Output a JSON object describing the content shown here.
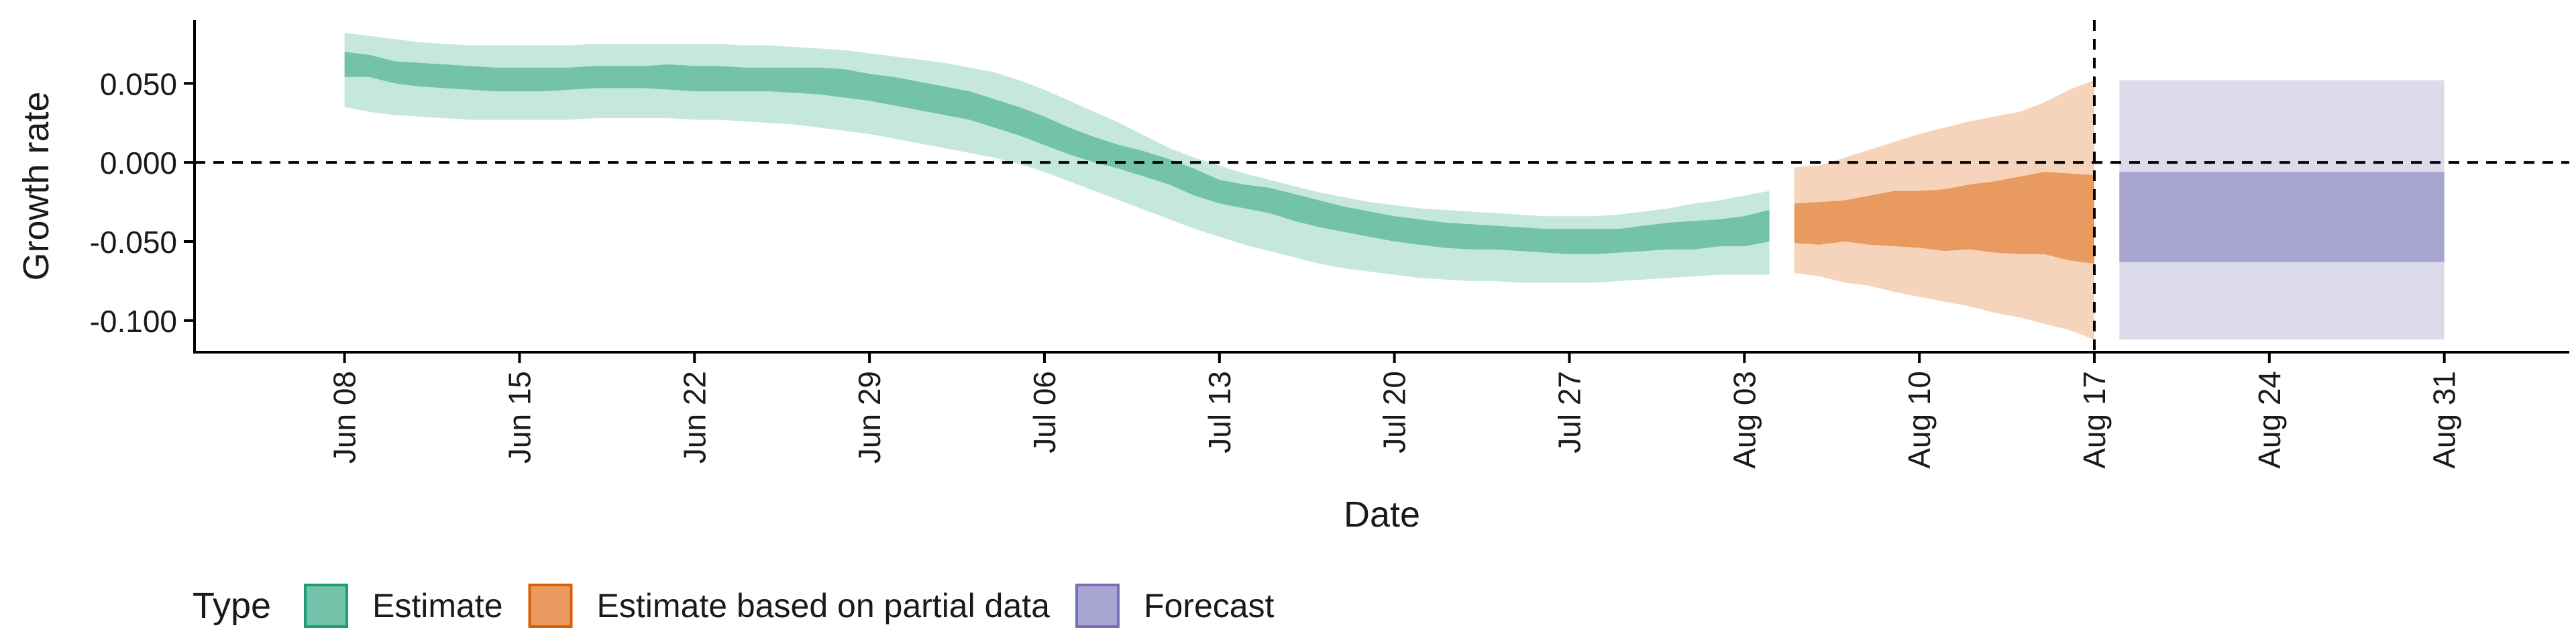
{
  "chart_data": {
    "type": "area",
    "title": "",
    "xlabel": "Date",
    "ylabel": "Growth rate",
    "ylim": [
      -0.12,
      0.09
    ],
    "xlim": [
      "2020-06-02",
      "2020-09-05"
    ],
    "grid": false,
    "y_ticks": [
      {
        "value": 0.05,
        "label": "0.050"
      },
      {
        "value": 0.0,
        "label": "0.000"
      },
      {
        "value": -0.05,
        "label": "-0.050"
      },
      {
        "value": -0.1,
        "label": "-0.100"
      }
    ],
    "x_ticks": [
      {
        "value": "2020-06-08",
        "label": "Jun 08"
      },
      {
        "value": "2020-06-15",
        "label": "Jun 15"
      },
      {
        "value": "2020-06-22",
        "label": "Jun 22"
      },
      {
        "value": "2020-06-29",
        "label": "Jun 29"
      },
      {
        "value": "2020-07-06",
        "label": "Jul 06"
      },
      {
        "value": "2020-07-13",
        "label": "Jul 13"
      },
      {
        "value": "2020-07-20",
        "label": "Jul 20"
      },
      {
        "value": "2020-07-27",
        "label": "Jul 27"
      },
      {
        "value": "2020-08-03",
        "label": "Aug 03"
      },
      {
        "value": "2020-08-10",
        "label": "Aug 10"
      },
      {
        "value": "2020-08-17",
        "label": "Aug 17"
      },
      {
        "value": "2020-08-24",
        "label": "Aug 24"
      },
      {
        "value": "2020-08-31",
        "label": "Aug 31"
      }
    ],
    "reference_lines": [
      {
        "axis": "y",
        "value": 0.0,
        "style": "dashed"
      },
      {
        "axis": "x",
        "value": "2020-08-17",
        "style": "dashed"
      }
    ],
    "legend": {
      "title": "Type",
      "position": "bottom-left",
      "entries": [
        {
          "label": "Estimate",
          "color": "#1b9e77"
        },
        {
          "label": "Estimate based on partial data",
          "color": "#d95f02"
        },
        {
          "label": "Forecast",
          "color": "#7570b3"
        }
      ]
    },
    "series": [
      {
        "name": "Estimate",
        "color": "#1b9e77",
        "x": [
          "2020-06-08",
          "2020-06-09",
          "2020-06-10",
          "2020-06-11",
          "2020-06-12",
          "2020-06-13",
          "2020-06-14",
          "2020-06-15",
          "2020-06-16",
          "2020-06-17",
          "2020-06-18",
          "2020-06-19",
          "2020-06-20",
          "2020-06-21",
          "2020-06-22",
          "2020-06-23",
          "2020-06-24",
          "2020-06-25",
          "2020-06-26",
          "2020-06-27",
          "2020-06-28",
          "2020-06-29",
          "2020-06-30",
          "2020-07-01",
          "2020-07-02",
          "2020-07-03",
          "2020-07-04",
          "2020-07-05",
          "2020-07-06",
          "2020-07-07",
          "2020-07-08",
          "2020-07-09",
          "2020-07-10",
          "2020-07-11",
          "2020-07-12",
          "2020-07-13",
          "2020-07-14",
          "2020-07-15",
          "2020-07-16",
          "2020-07-17",
          "2020-07-18",
          "2020-07-19",
          "2020-07-20",
          "2020-07-21",
          "2020-07-22",
          "2020-07-23",
          "2020-07-24",
          "2020-07-25",
          "2020-07-26",
          "2020-07-27",
          "2020-07-28",
          "2020-07-29",
          "2020-07-30",
          "2020-07-31",
          "2020-08-01",
          "2020-08-02",
          "2020-08-03",
          "2020-08-04"
        ],
        "upper_90": [
          0.082,
          0.08,
          0.078,
          0.076,
          0.075,
          0.074,
          0.074,
          0.074,
          0.074,
          0.074,
          0.075,
          0.075,
          0.075,
          0.075,
          0.075,
          0.075,
          0.074,
          0.074,
          0.073,
          0.072,
          0.071,
          0.069,
          0.067,
          0.065,
          0.063,
          0.06,
          0.057,
          0.052,
          0.046,
          0.039,
          0.032,
          0.025,
          0.017,
          0.009,
          0.003,
          -0.002,
          -0.007,
          -0.011,
          -0.015,
          -0.019,
          -0.022,
          -0.025,
          -0.027,
          -0.029,
          -0.03,
          -0.031,
          -0.032,
          -0.033,
          -0.034,
          -0.034,
          -0.034,
          -0.033,
          -0.031,
          -0.029,
          -0.026,
          -0.024,
          -0.021,
          -0.018
        ],
        "upper_50": [
          0.07,
          0.068,
          0.064,
          0.063,
          0.062,
          0.061,
          0.06,
          0.06,
          0.06,
          0.06,
          0.061,
          0.061,
          0.061,
          0.062,
          0.061,
          0.061,
          0.06,
          0.06,
          0.06,
          0.06,
          0.059,
          0.056,
          0.054,
          0.051,
          0.048,
          0.045,
          0.04,
          0.035,
          0.029,
          0.022,
          0.016,
          0.011,
          0.007,
          0.002,
          -0.004,
          -0.011,
          -0.014,
          -0.016,
          -0.02,
          -0.024,
          -0.028,
          -0.031,
          -0.034,
          -0.036,
          -0.038,
          -0.039,
          -0.04,
          -0.041,
          -0.042,
          -0.042,
          -0.042,
          -0.042,
          -0.04,
          -0.038,
          -0.037,
          -0.036,
          -0.034,
          -0.03
        ],
        "lower_50": [
          0.054,
          0.054,
          0.05,
          0.048,
          0.047,
          0.046,
          0.045,
          0.045,
          0.045,
          0.046,
          0.047,
          0.047,
          0.047,
          0.046,
          0.045,
          0.045,
          0.045,
          0.045,
          0.044,
          0.043,
          0.041,
          0.039,
          0.036,
          0.033,
          0.03,
          0.027,
          0.022,
          0.017,
          0.011,
          0.005,
          0.0,
          -0.004,
          -0.009,
          -0.014,
          -0.021,
          -0.026,
          -0.029,
          -0.032,
          -0.037,
          -0.041,
          -0.044,
          -0.047,
          -0.05,
          -0.052,
          -0.054,
          -0.055,
          -0.055,
          -0.056,
          -0.057,
          -0.058,
          -0.058,
          -0.057,
          -0.056,
          -0.055,
          -0.055,
          -0.053,
          -0.053,
          -0.05
        ],
        "lower_90": [
          0.035,
          0.032,
          0.03,
          0.029,
          0.028,
          0.027,
          0.027,
          0.027,
          0.027,
          0.027,
          0.028,
          0.028,
          0.028,
          0.028,
          0.027,
          0.027,
          0.026,
          0.025,
          0.024,
          0.022,
          0.02,
          0.018,
          0.015,
          0.012,
          0.009,
          0.006,
          0.003,
          -0.001,
          -0.006,
          -0.012,
          -0.018,
          -0.024,
          -0.03,
          -0.036,
          -0.042,
          -0.047,
          -0.052,
          -0.056,
          -0.06,
          -0.064,
          -0.067,
          -0.069,
          -0.071,
          -0.073,
          -0.074,
          -0.075,
          -0.075,
          -0.076,
          -0.076,
          -0.076,
          -0.076,
          -0.075,
          -0.074,
          -0.073,
          -0.072,
          -0.071,
          -0.071,
          -0.071
        ]
      },
      {
        "name": "Estimate based on partial data",
        "color": "#d95f02",
        "x": [
          "2020-08-05",
          "2020-08-06",
          "2020-08-07",
          "2020-08-08",
          "2020-08-09",
          "2020-08-10",
          "2020-08-11",
          "2020-08-12",
          "2020-08-13",
          "2020-08-14",
          "2020-08-15",
          "2020-08-16",
          "2020-08-17"
        ],
        "upper_90": [
          -0.003,
          -0.002,
          0.003,
          0.008,
          0.013,
          0.018,
          0.022,
          0.026,
          0.029,
          0.032,
          0.038,
          0.046,
          0.052
        ],
        "upper_50": [
          -0.026,
          -0.025,
          -0.024,
          -0.021,
          -0.018,
          -0.018,
          -0.017,
          -0.014,
          -0.012,
          -0.009,
          -0.006,
          -0.007,
          -0.008
        ],
        "lower_50": [
          -0.051,
          -0.052,
          -0.05,
          -0.052,
          -0.053,
          -0.054,
          -0.056,
          -0.055,
          -0.057,
          -0.058,
          -0.058,
          -0.062,
          -0.064
        ],
        "lower_90": [
          -0.07,
          -0.072,
          -0.076,
          -0.078,
          -0.082,
          -0.085,
          -0.088,
          -0.091,
          -0.095,
          -0.098,
          -0.102,
          -0.106,
          -0.112
        ]
      },
      {
        "name": "Forecast",
        "color": "#7570b3",
        "x": [
          "2020-08-18",
          "2020-08-31"
        ],
        "upper_90": [
          0.052,
          0.052
        ],
        "upper_50": [
          -0.006,
          -0.006
        ],
        "lower_50": [
          -0.063,
          -0.063
        ],
        "lower_90": [
          -0.112,
          -0.112
        ]
      }
    ]
  }
}
